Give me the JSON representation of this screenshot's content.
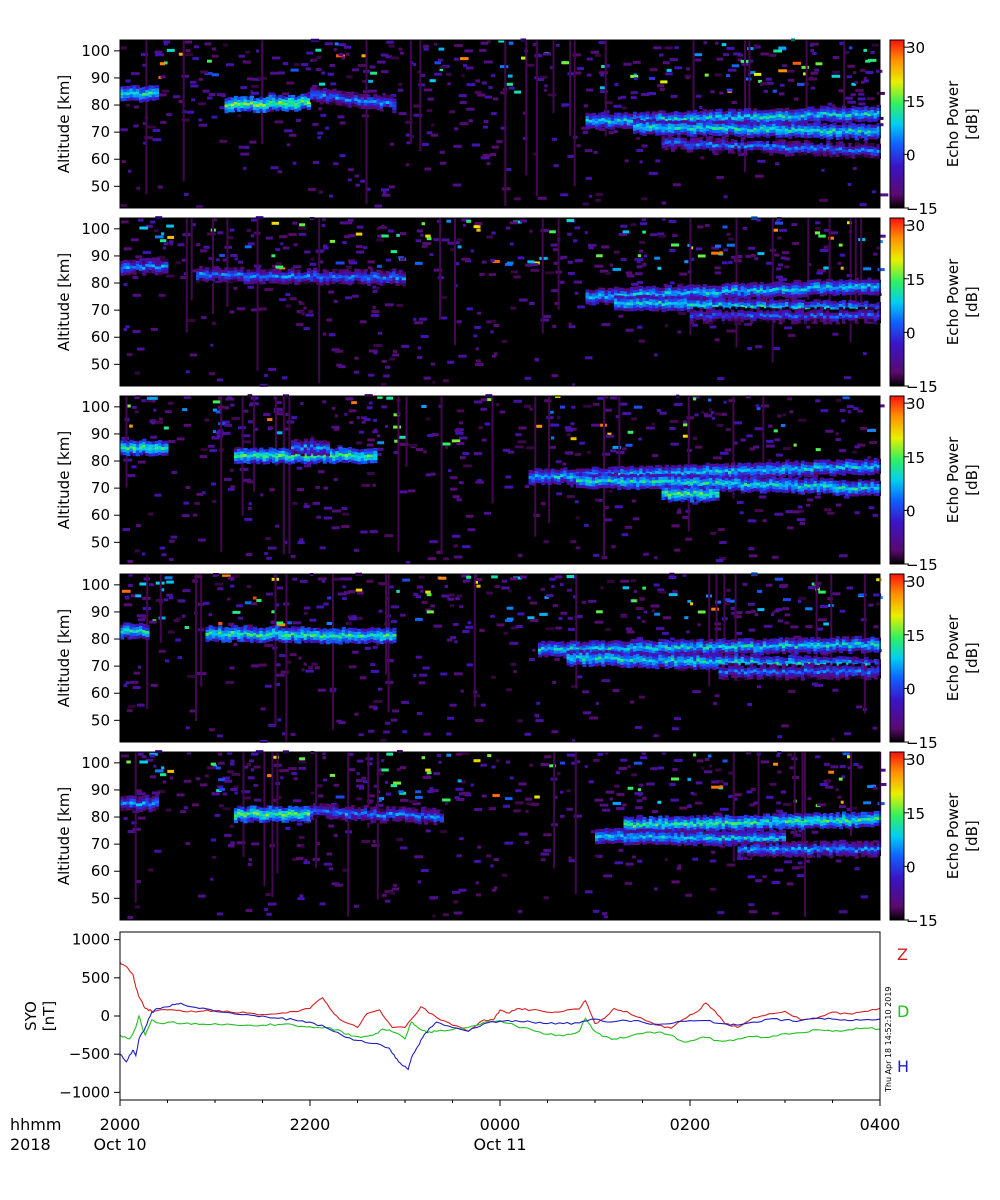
{
  "chart_data": [
    {
      "type": "heatmap",
      "ylabel": "Altitude [km]",
      "yticks": [
        "100",
        "90",
        "80",
        "70",
        "60",
        "50"
      ],
      "ylim": [
        42,
        104
      ],
      "colorbar": {
        "label": "Echo Power\n[dB]",
        "ticks": [
          "30",
          "15",
          "0",
          "−15"
        ],
        "range": [
          -15,
          32
        ]
      },
      "x_range_hours": [
        0,
        8
      ],
      "layers": [
        {
          "start_h": 0.0,
          "end_h": 0.4,
          "alt_start": 84,
          "alt_end": 84,
          "power": 10
        },
        {
          "start_h": 1.1,
          "end_h": 2.0,
          "alt_start": 80,
          "alt_end": 81,
          "power": 14
        },
        {
          "start_h": 2.0,
          "end_h": 2.9,
          "alt_start": 84,
          "alt_end": 80,
          "power": 3
        },
        {
          "start_h": 4.9,
          "end_h": 8.0,
          "alt_start": 74,
          "alt_end": 77,
          "power": 8
        },
        {
          "start_h": 5.4,
          "end_h": 8.0,
          "alt_start": 72,
          "alt_end": 70,
          "power": 9
        },
        {
          "start_h": 5.7,
          "end_h": 8.0,
          "alt_start": 66,
          "alt_end": 63,
          "power": 2
        }
      ]
    },
    {
      "type": "heatmap",
      "ylabel": "Altitude [km]",
      "yticks": [
        "100",
        "90",
        "80",
        "70",
        "60",
        "50"
      ],
      "ylim": [
        42,
        104
      ],
      "colorbar": {
        "label": "Echo Power\n[dB]",
        "ticks": [
          "30",
          "15",
          "0",
          "−15"
        ],
        "range": [
          -15,
          32
        ]
      },
      "x_range_hours": [
        0,
        8
      ],
      "layers": [
        {
          "start_h": 0.0,
          "end_h": 0.5,
          "alt_start": 86,
          "alt_end": 86,
          "power": 4
        },
        {
          "start_h": 0.8,
          "end_h": 3.0,
          "alt_start": 83,
          "alt_end": 82,
          "power": 3
        },
        {
          "start_h": 4.9,
          "end_h": 8.0,
          "alt_start": 75,
          "alt_end": 79,
          "power": 7
        },
        {
          "start_h": 5.2,
          "end_h": 8.0,
          "alt_start": 73,
          "alt_end": 70,
          "power": 8
        },
        {
          "start_h": 6.0,
          "end_h": 8.0,
          "alt_start": 68,
          "alt_end": 68,
          "power": 0
        }
      ]
    },
    {
      "type": "heatmap",
      "ylabel": "Altitude [km]",
      "yticks": [
        "100",
        "90",
        "80",
        "70",
        "60",
        "50"
      ],
      "ylim": [
        42,
        104
      ],
      "colorbar": {
        "label": "Echo Power\n[dB]",
        "ticks": [
          "30",
          "15",
          "0",
          "−15"
        ],
        "range": [
          -15,
          32
        ]
      },
      "x_range_hours": [
        0,
        8
      ],
      "layers": [
        {
          "start_h": 0.0,
          "end_h": 0.5,
          "alt_start": 85,
          "alt_end": 85,
          "power": 11
        },
        {
          "start_h": 1.2,
          "end_h": 2.7,
          "alt_start": 82,
          "alt_end": 82,
          "power": 12
        },
        {
          "start_h": 1.8,
          "end_h": 2.2,
          "alt_start": 85,
          "alt_end": 85,
          "power": 4
        },
        {
          "start_h": 4.3,
          "end_h": 8.0,
          "alt_start": 74,
          "alt_end": 78,
          "power": 7
        },
        {
          "start_h": 4.8,
          "end_h": 8.0,
          "alt_start": 73,
          "alt_end": 70,
          "power": 9
        },
        {
          "start_h": 5.7,
          "end_h": 6.3,
          "alt_start": 68,
          "alt_end": 68,
          "power": 12
        }
      ]
    },
    {
      "type": "heatmap",
      "ylabel": "Altitude [km]",
      "yticks": [
        "100",
        "90",
        "80",
        "70",
        "60",
        "50"
      ],
      "ylim": [
        42,
        104
      ],
      "colorbar": {
        "label": "Echo Power\n[dB]",
        "ticks": [
          "30",
          "15",
          "0",
          "−15"
        ],
        "range": [
          -15,
          32
        ]
      },
      "x_range_hours": [
        0,
        8
      ],
      "layers": [
        {
          "start_h": 0.0,
          "end_h": 0.3,
          "alt_start": 83,
          "alt_end": 83,
          "power": 9
        },
        {
          "start_h": 0.9,
          "end_h": 2.9,
          "alt_start": 82,
          "alt_end": 81,
          "power": 11
        },
        {
          "start_h": 4.4,
          "end_h": 8.0,
          "alt_start": 76,
          "alt_end": 78,
          "power": 8
        },
        {
          "start_h": 4.7,
          "end_h": 8.0,
          "alt_start": 73,
          "alt_end": 70,
          "power": 9
        },
        {
          "start_h": 6.3,
          "end_h": 8.0,
          "alt_start": 68,
          "alt_end": 68,
          "power": 2
        }
      ]
    },
    {
      "type": "heatmap",
      "ylabel": "Altitude [km]",
      "yticks": [
        "100",
        "90",
        "80",
        "70",
        "60",
        "50"
      ],
      "ylim": [
        42,
        104
      ],
      "colorbar": {
        "label": "Echo Power\n[dB]",
        "ticks": [
          "30",
          "15",
          "0",
          "−15"
        ],
        "range": [
          -15,
          32
        ]
      },
      "x_range_hours": [
        0,
        8
      ],
      "layers": [
        {
          "start_h": 0.0,
          "end_h": 0.4,
          "alt_start": 85,
          "alt_end": 85,
          "power": 4
        },
        {
          "start_h": 1.2,
          "end_h": 2.0,
          "alt_start": 81,
          "alt_end": 81,
          "power": 13
        },
        {
          "start_h": 2.0,
          "end_h": 3.4,
          "alt_start": 82,
          "alt_end": 80,
          "power": 3
        },
        {
          "start_h": 5.3,
          "end_h": 8.0,
          "alt_start": 77,
          "alt_end": 79,
          "power": 11
        },
        {
          "start_h": 5.0,
          "end_h": 7.0,
          "alt_start": 73,
          "alt_end": 72,
          "power": 7
        },
        {
          "start_h": 6.5,
          "end_h": 8.0,
          "alt_start": 68,
          "alt_end": 68,
          "power": 4
        }
      ]
    },
    {
      "type": "line",
      "ylabel": "SYO\n[nT]",
      "ylim": [
        -1100,
        1100
      ],
      "yticks": [
        "1000",
        "500",
        "0",
        "−500",
        "−1000"
      ],
      "x_range_hours": [
        0,
        8
      ],
      "series": [
        {
          "name": "Z",
          "color": "#d42020",
          "points": [
            [
              0,
              700
            ],
            [
              0.2,
              650
            ],
            [
              0.4,
              550
            ],
            [
              0.5,
              380
            ],
            [
              0.6,
              250
            ],
            [
              0.8,
              100
            ],
            [
              1.0,
              60
            ],
            [
              1.5,
              80
            ],
            [
              2.0,
              60
            ],
            [
              2.5,
              60
            ],
            [
              3.0,
              70
            ],
            [
              3.5,
              50
            ],
            [
              4.0,
              40
            ],
            [
              4.5,
              20
            ],
            [
              5.0,
              30
            ],
            [
              5.5,
              60
            ],
            [
              6.0,
              100
            ],
            [
              6.4,
              240
            ],
            [
              6.7,
              60
            ],
            [
              7.0,
              -60
            ],
            [
              7.5,
              -150
            ],
            [
              7.8,
              30
            ],
            [
              8.2,
              80
            ],
            [
              8.6,
              -150
            ],
            [
              9.0,
              -150
            ],
            [
              9.5,
              120
            ],
            [
              10.0,
              -20
            ],
            [
              10.5,
              -120
            ],
            [
              11.0,
              -200
            ],
            [
              11.5,
              -50
            ],
            [
              11.8,
              -50
            ],
            [
              12.0,
              80
            ],
            [
              12.3,
              40
            ],
            [
              12.6,
              100
            ],
            [
              13.0,
              80
            ],
            [
              13.5,
              50
            ],
            [
              14.0,
              60
            ],
            [
              14.5,
              90
            ],
            [
              14.7,
              200
            ],
            [
              15.0,
              -100
            ],
            [
              15.3,
              -30
            ],
            [
              15.6,
              100
            ],
            [
              16.0,
              60
            ],
            [
              16.6,
              -60
            ],
            [
              17.0,
              -120
            ],
            [
              17.4,
              -160
            ],
            [
              17.8,
              -40
            ],
            [
              18.2,
              50
            ],
            [
              18.5,
              170
            ],
            [
              18.8,
              60
            ],
            [
              19.1,
              -100
            ],
            [
              19.5,
              -150
            ],
            [
              20.0,
              -20
            ],
            [
              20.5,
              30
            ],
            [
              21.0,
              60
            ],
            [
              21.5,
              -50
            ],
            [
              22.0,
              -30
            ],
            [
              22.5,
              50
            ],
            [
              23.0,
              30
            ],
            [
              23.5,
              60
            ],
            [
              24.0,
              100
            ]
          ]
        },
        {
          "name": "D",
          "color": "#20c020",
          "points": [
            [
              0,
              -250
            ],
            [
              0.3,
              -300
            ],
            [
              0.5,
              -150
            ],
            [
              0.6,
              0
            ],
            [
              0.7,
              -150
            ],
            [
              0.8,
              -250
            ],
            [
              1.0,
              -50
            ],
            [
              1.3,
              -100
            ],
            [
              1.6,
              -80
            ],
            [
              2.0,
              -100
            ],
            [
              2.5,
              -110
            ],
            [
              3.0,
              -100
            ],
            [
              3.5,
              -110
            ],
            [
              4.0,
              -120
            ],
            [
              4.5,
              -120
            ],
            [
              5.0,
              -110
            ],
            [
              5.5,
              -120
            ],
            [
              6.0,
              -140
            ],
            [
              6.5,
              -150
            ],
            [
              7.0,
              -200
            ],
            [
              7.3,
              -260
            ],
            [
              7.6,
              -280
            ],
            [
              8.0,
              -250
            ],
            [
              8.3,
              -170
            ],
            [
              8.7,
              -220
            ],
            [
              9.0,
              -300
            ],
            [
              9.2,
              -80
            ],
            [
              9.4,
              -150
            ],
            [
              9.7,
              -220
            ],
            [
              10.0,
              -200
            ],
            [
              10.5,
              -180
            ],
            [
              11.0,
              -150
            ],
            [
              11.5,
              -80
            ],
            [
              12.0,
              -60
            ],
            [
              12.5,
              -130
            ],
            [
              13.0,
              -180
            ],
            [
              13.5,
              -240
            ],
            [
              14.0,
              -260
            ],
            [
              14.5,
              -200
            ],
            [
              14.7,
              -30
            ],
            [
              15.0,
              -200
            ],
            [
              15.3,
              -270
            ],
            [
              15.6,
              -300
            ],
            [
              16.0,
              -280
            ],
            [
              16.5,
              -230
            ],
            [
              17.0,
              -210
            ],
            [
              17.4,
              -250
            ],
            [
              17.8,
              -340
            ],
            [
              18.2,
              -310
            ],
            [
              18.5,
              -280
            ],
            [
              19.0,
              -330
            ],
            [
              19.5,
              -300
            ],
            [
              20.0,
              -270
            ],
            [
              20.5,
              -280
            ],
            [
              21.0,
              -230
            ],
            [
              21.5,
              -220
            ],
            [
              22.0,
              -180
            ],
            [
              22.5,
              -200
            ],
            [
              23.0,
              -180
            ],
            [
              23.5,
              -160
            ],
            [
              24.0,
              -170
            ]
          ]
        },
        {
          "name": "H",
          "color": "#2020c0",
          "points": [
            [
              0,
              -500
            ],
            [
              0.2,
              -600
            ],
            [
              0.4,
              -450
            ],
            [
              0.5,
              -520
            ],
            [
              0.6,
              -300
            ],
            [
              0.8,
              -150
            ],
            [
              1.0,
              50
            ],
            [
              1.2,
              100
            ],
            [
              1.5,
              120
            ],
            [
              1.8,
              160
            ],
            [
              2.0,
              150
            ],
            [
              2.5,
              100
            ],
            [
              3.0,
              60
            ],
            [
              3.5,
              40
            ],
            [
              4.0,
              20
            ],
            [
              4.5,
              0
            ],
            [
              5.0,
              -30
            ],
            [
              5.5,
              -50
            ],
            [
              6.0,
              -80
            ],
            [
              6.5,
              -150
            ],
            [
              7.0,
              -250
            ],
            [
              7.5,
              -320
            ],
            [
              8.0,
              -360
            ],
            [
              8.5,
              -420
            ],
            [
              8.7,
              -550
            ],
            [
              8.9,
              -640
            ],
            [
              9.1,
              -700
            ],
            [
              9.2,
              -550
            ],
            [
              9.4,
              -400
            ],
            [
              9.6,
              -250
            ],
            [
              9.8,
              -150
            ],
            [
              10.0,
              -80
            ],
            [
              10.5,
              -150
            ],
            [
              11.0,
              -200
            ],
            [
              11.5,
              -100
            ],
            [
              12.0,
              -70
            ],
            [
              12.5,
              -60
            ],
            [
              13.0,
              -80
            ],
            [
              13.5,
              -100
            ],
            [
              14.0,
              -100
            ],
            [
              14.5,
              -90
            ],
            [
              15.0,
              -40
            ],
            [
              15.5,
              -80
            ],
            [
              16.0,
              -60
            ],
            [
              16.5,
              -80
            ],
            [
              17.0,
              -110
            ],
            [
              17.5,
              -90
            ],
            [
              18.0,
              -60
            ],
            [
              18.5,
              -60
            ],
            [
              19.0,
              -100
            ],
            [
              19.5,
              -120
            ],
            [
              20.0,
              -80
            ],
            [
              20.5,
              -40
            ],
            [
              21.0,
              -50
            ],
            [
              21.5,
              -60
            ],
            [
              22.0,
              -30
            ],
            [
              22.5,
              -40
            ],
            [
              23.0,
              -60
            ],
            [
              23.5,
              -50
            ],
            [
              24.0,
              -40
            ]
          ]
        }
      ]
    }
  ],
  "xaxis": {
    "row1_label": "hhmm",
    "row2_label": "2018",
    "ticks": [
      "2000",
      "2200",
      "0000",
      "0200",
      "0400"
    ],
    "date_labels": [
      {
        "text": "Oct 10",
        "at_tick": 0
      },
      {
        "text": "Oct 11",
        "at_tick": 2
      }
    ]
  },
  "timestamp": "Thu Apr 18 14:52:10 2019"
}
